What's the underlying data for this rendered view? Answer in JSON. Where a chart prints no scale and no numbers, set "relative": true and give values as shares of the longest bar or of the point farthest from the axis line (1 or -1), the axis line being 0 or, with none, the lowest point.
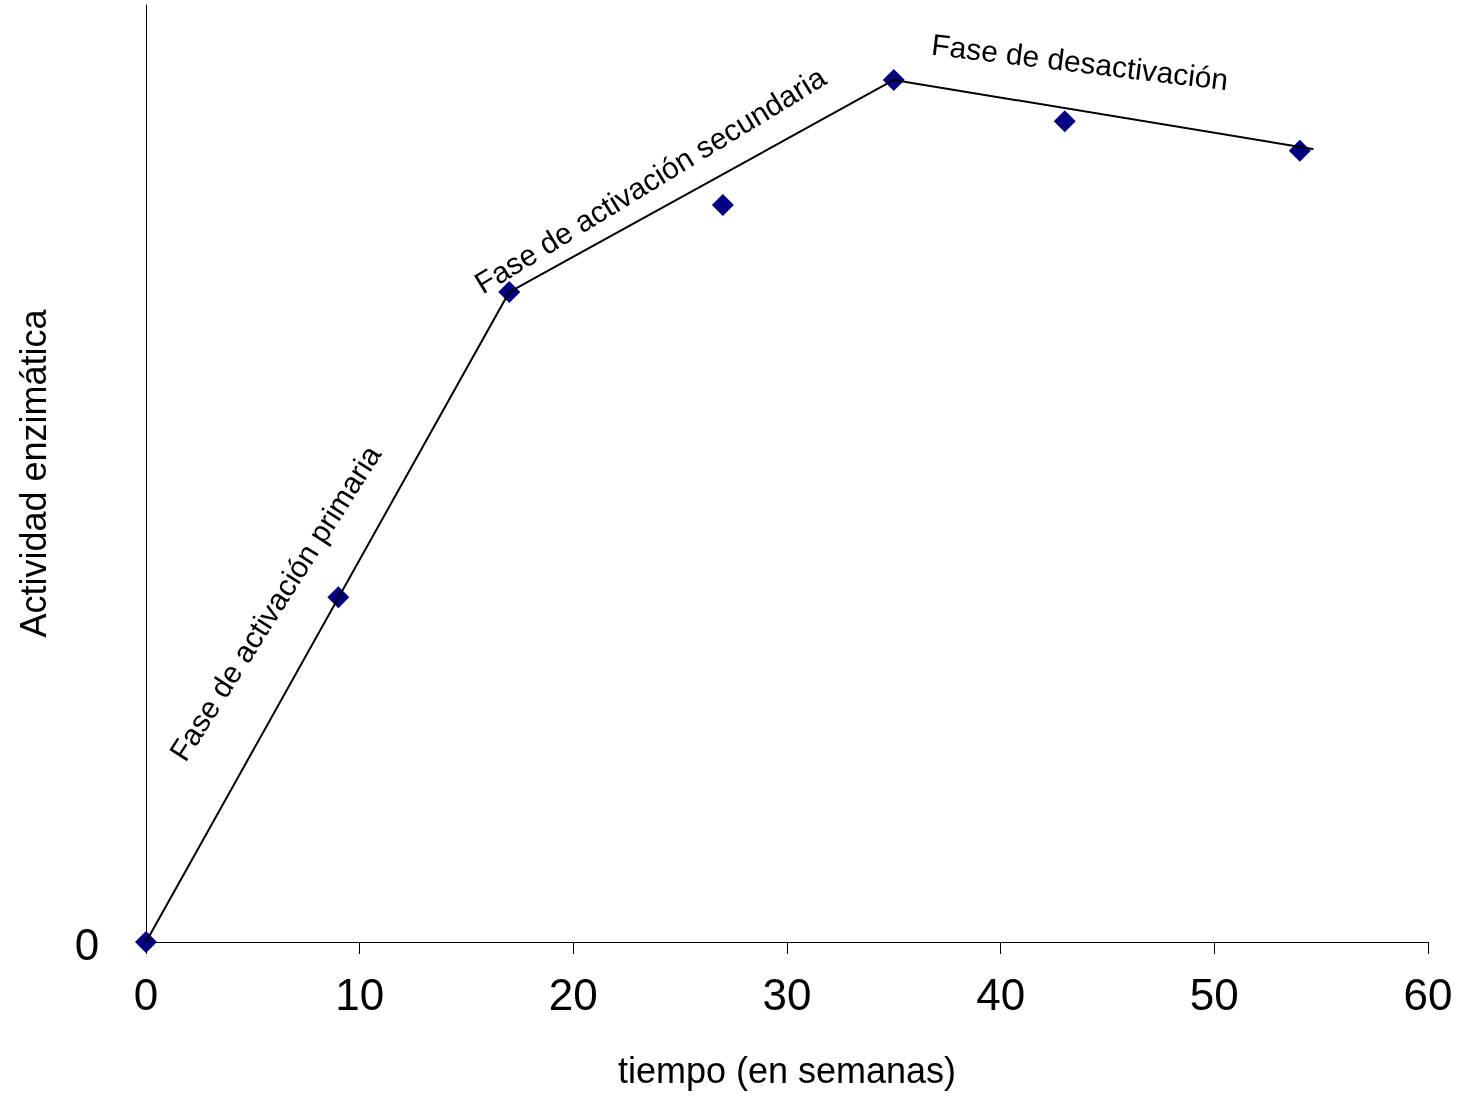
{
  "chart_data": {
    "type": "scatter",
    "relative": true,
    "xlabel": "tiempo (en semanas)",
    "ylabel": "Actividad enzimática",
    "xlim": [
      0,
      60
    ],
    "xticks": [
      0,
      10,
      20,
      30,
      40,
      50,
      60
    ],
    "grid": false,
    "annotations": [
      "0",
      "Fase de activación primaria",
      "Fase de activación secundaria",
      "Fase de desactivación"
    ],
    "series": [
      {
        "color": "#000080",
        "marker": "diamond",
        "x": [
          0,
          9,
          17,
          27,
          35,
          43,
          54
        ],
        "values": [
          0,
          0.4,
          0.754,
          0.855,
          1,
          0.952,
          0.918
        ]
      },
      {
        "type": "line",
        "color": "#000000",
        "marker": "none",
        "line_style": "solid",
        "x": [
          0,
          17,
          35,
          54.6
        ],
        "values": [
          0,
          0.754,
          1,
          0.92
        ]
      }
    ]
  }
}
